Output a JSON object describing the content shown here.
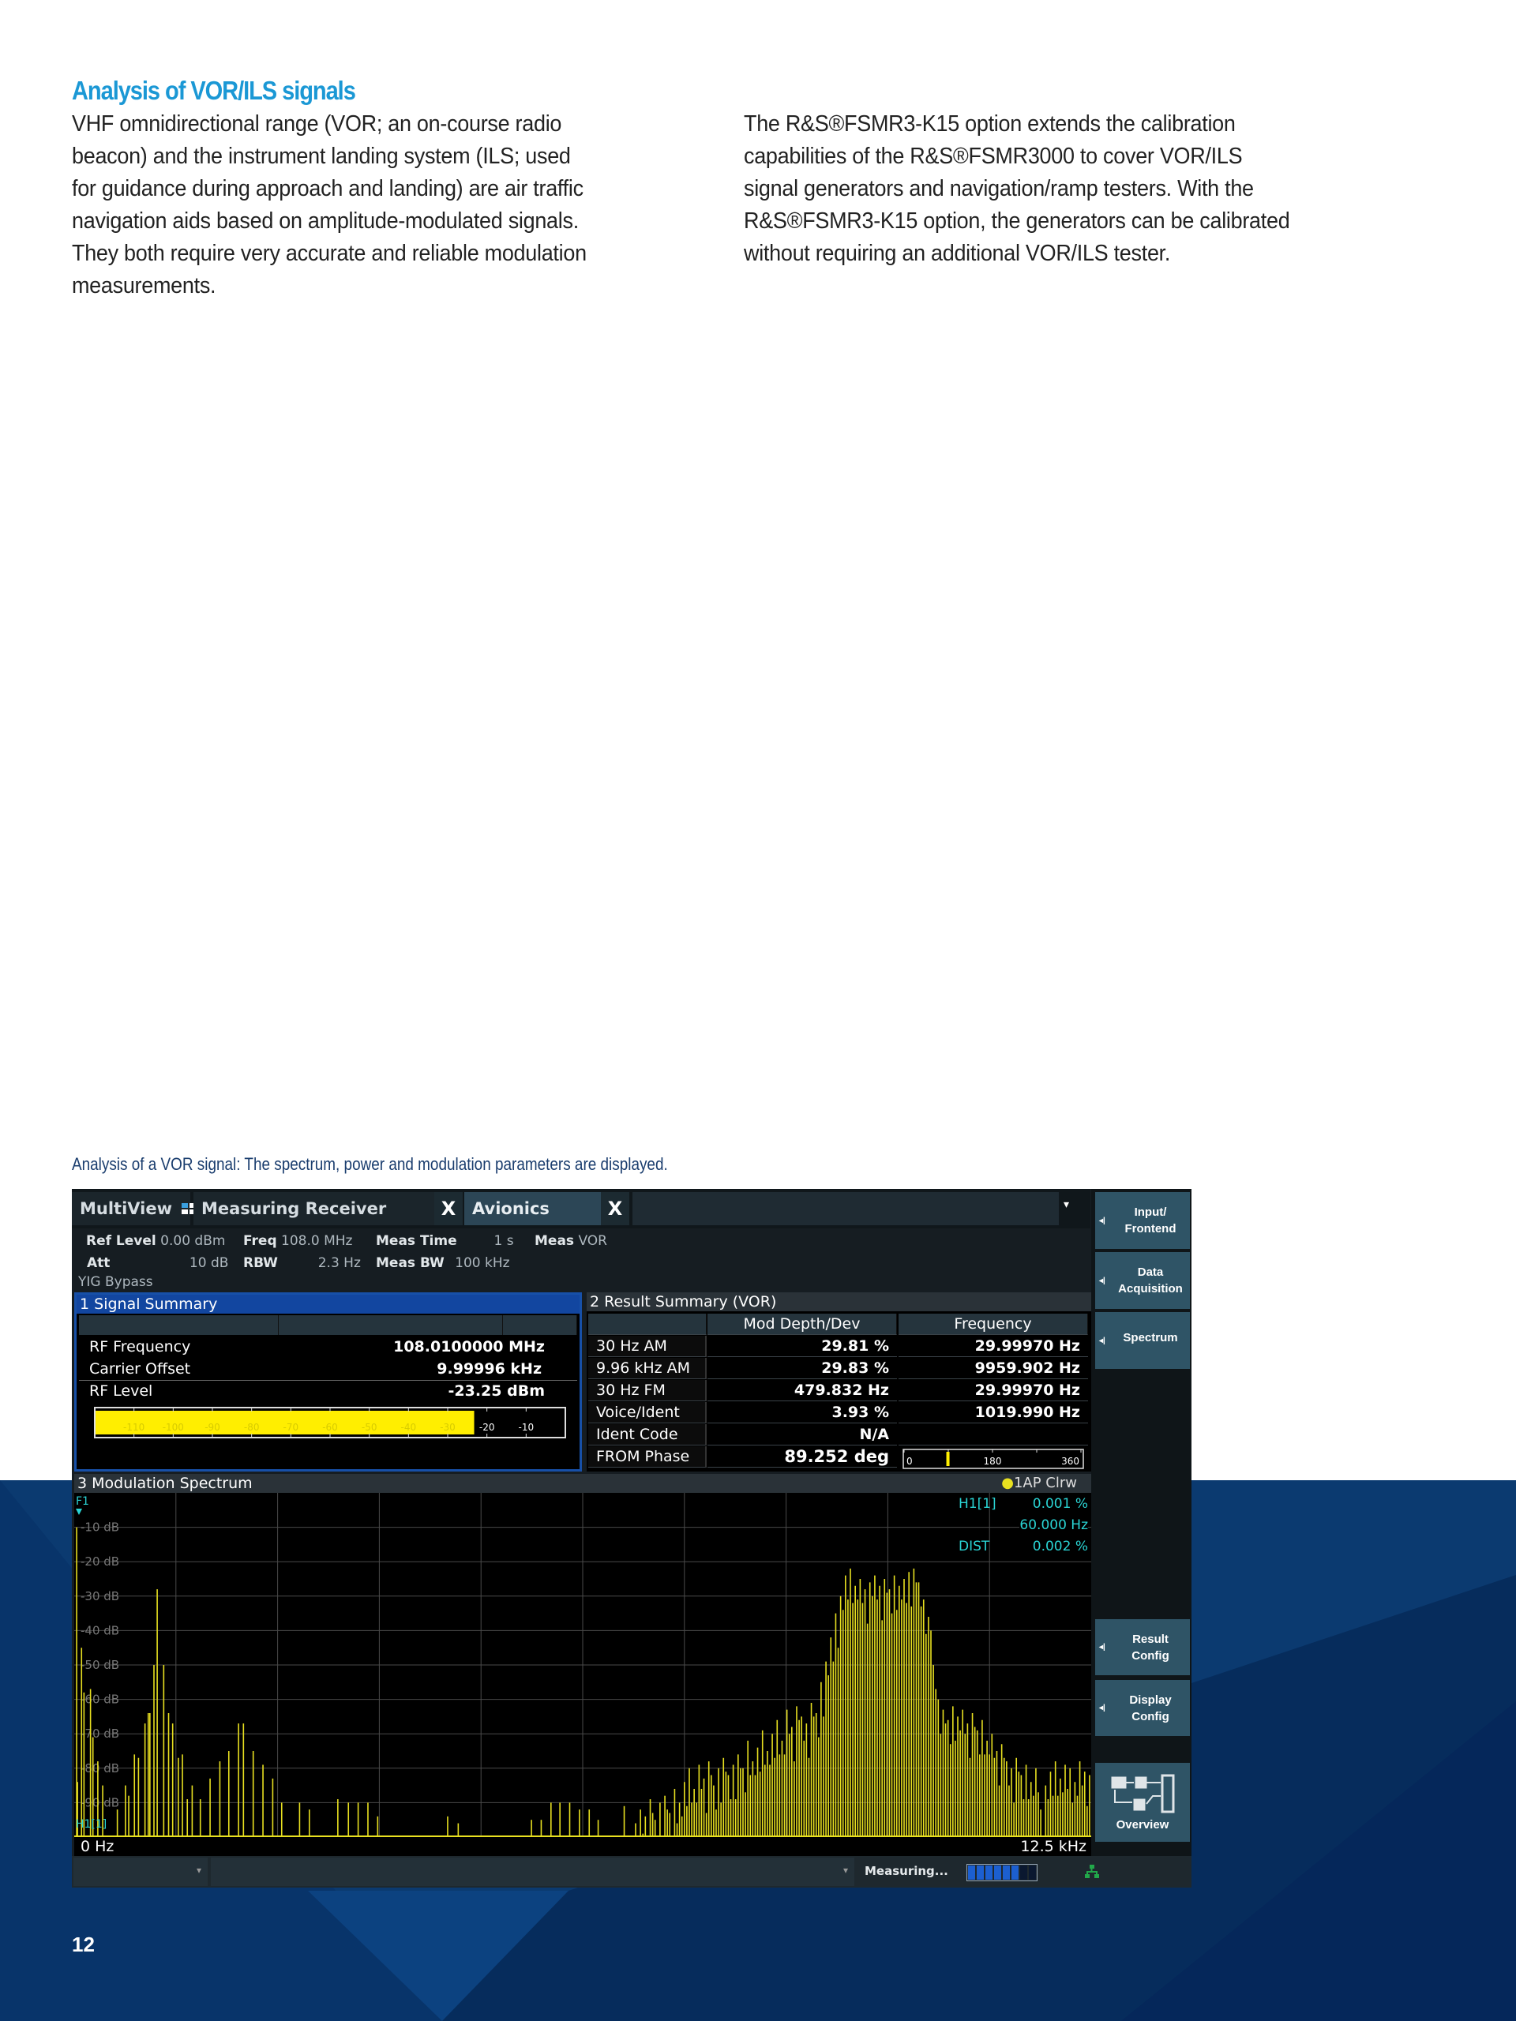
{
  "page": {
    "heading": "Analysis of VOR/ILS signals",
    "left_lines": [
      "VHF omnidirectional range (VOR; an on-course radio",
      "beacon) and the instrument landing system (ILS; used",
      "for guidance during approach and landing) are air traffic",
      "navigation aids based on amplitude-modulated signals.",
      "They both require very accurate and reliable modulation",
      "measurements."
    ],
    "right_lines": [
      "The R&S®FSMR3-K15 option extends the calibration",
      "capabilities of the R&S®FSMR3000 to cover VOR/ILS",
      "signal generators and navigation/ramp testers. With the",
      "R&S®FSMR3-K15 option, the generators can be calibrated",
      "without requiring an additional VOR/ILS tester."
    ],
    "caption": "Analysis of a VOR signal: The spectrum, power and modulation parameters are displayed.",
    "page_number": "12",
    "brand_blue": "#1b98d5",
    "background_blue": "#0b3a70"
  },
  "instrument": {
    "tabs": {
      "multiview": "MultiView",
      "measuring_receiver": "Measuring Receiver",
      "avionics": "Avionics",
      "close": "X",
      "dropdown": "▾"
    },
    "info": {
      "ref_level_label": "Ref Level",
      "ref_level": "0.00 dBm",
      "freq_label": "Freq",
      "freq": "108.0 MHz",
      "meas_time_label": "Meas Time",
      "meas_time": "1 s",
      "meas_label": "Meas",
      "meas": "VOR",
      "att_label": "Att",
      "att": "10 dB",
      "rbw_label": "RBW",
      "rbw": "2.3 Hz",
      "meas_bw_label": "Meas BW",
      "meas_bw": "100 kHz",
      "yig": "YIG Bypass"
    },
    "signal_summary": {
      "title": "1 Signal Summary",
      "rows": [
        {
          "label": "RF Frequency",
          "value": "108.0100000 MHz"
        },
        {
          "label": "Carrier Offset",
          "value": "9.99996 kHz"
        },
        {
          "label": "RF Level",
          "value": "-23.25 dBm"
        }
      ],
      "gauge": {
        "min": -120,
        "max": 0,
        "level_dbm": -23.25,
        "ticks": [
          "-110",
          "-100",
          "-90",
          "-80",
          "-70",
          "-60",
          "-50",
          "-40",
          "-30",
          "-20",
          "-10"
        ]
      }
    },
    "result_summary": {
      "title": "2 Result Summary (VOR)",
      "headers": [
        "",
        "Mod Depth/Dev",
        "Frequency"
      ],
      "rows": [
        [
          "30 Hz AM",
          "29.81 %",
          "29.99970 Hz"
        ],
        [
          "9.96 kHz AM",
          "29.83 %",
          "9959.902 Hz"
        ],
        [
          "30 Hz FM",
          "479.832 Hz",
          "29.99970 Hz"
        ],
        [
          "Voice/Ident",
          "3.93 %",
          "1019.990 Hz"
        ],
        [
          "Ident Code",
          "N/A",
          ""
        ],
        [
          "FROM Phase",
          "89.252 deg",
          ""
        ]
      ],
      "phase_gauge": {
        "value_deg": 89.252,
        "labels": [
          "0",
          "180",
          "360"
        ]
      }
    },
    "spectrum": {
      "title": "3 Modulation Spectrum",
      "trace": "1AP Clrw",
      "marker_label": "F1",
      "marker2": "H1[1]",
      "readout": {
        "h1_label": "H1[1]",
        "h1_value": "0.001 %",
        "h1_freq": "60.000 Hz",
        "dist_label": "DIST",
        "dist_value": "0.002 %"
      },
      "x_start": "0 Hz",
      "x_stop": "12.5 kHz",
      "x_range_khz": [
        0,
        12.5
      ],
      "y_range_db": [
        -100,
        0
      ],
      "y_ticks": [
        "-10 dB",
        "-20 dB",
        "-30 dB",
        "-40 dB",
        "-50 dB",
        "-60 dB",
        "-70 dB",
        "-80 dB",
        "-90 dB"
      ],
      "trace_color": "#e8e020",
      "marker_color": "#2ad4d4",
      "lines_khz_db": [
        [
          0.03,
          -10
        ],
        [
          0.04,
          -84
        ],
        [
          0.09,
          -45
        ],
        [
          0.12,
          -58
        ],
        [
          0.2,
          -57
        ],
        [
          0.23,
          -71
        ],
        [
          0.29,
          -78
        ],
        [
          0.35,
          -85
        ],
        [
          0.53,
          -92
        ],
        [
          0.63,
          -85
        ],
        [
          0.67,
          -88
        ],
        [
          0.74,
          -76
        ],
        [
          0.79,
          -77
        ],
        [
          0.87,
          -67
        ],
        [
          0.91,
          -64
        ],
        [
          0.93,
          -64
        ],
        [
          0.98,
          -50
        ],
        [
          1.02,
          -28
        ],
        [
          1.1,
          -50
        ],
        [
          1.16,
          -64
        ],
        [
          1.21,
          -67
        ],
        [
          1.28,
          -77
        ],
        [
          1.33,
          -76
        ],
        [
          1.39,
          -89
        ],
        [
          1.45,
          -85
        ],
        [
          1.55,
          -89
        ],
        [
          1.67,
          -83
        ],
        [
          1.79,
          -78
        ],
        [
          1.9,
          -75
        ],
        [
          2.02,
          -67
        ],
        [
          2.08,
          -67
        ],
        [
          2.2,
          -75
        ],
        [
          2.32,
          -79
        ],
        [
          2.44,
          -83
        ],
        [
          2.55,
          -90
        ],
        [
          2.77,
          -90
        ],
        [
          2.89,
          -92
        ],
        [
          3.24,
          -89
        ],
        [
          3.37,
          -90
        ],
        [
          3.49,
          -90
        ],
        [
          3.61,
          -90
        ],
        [
          3.73,
          -94
        ],
        [
          4.59,
          -94
        ],
        [
          4.72,
          -96
        ],
        [
          5.62,
          -95
        ],
        [
          5.74,
          -95
        ],
        [
          5.86,
          -90
        ],
        [
          5.97,
          -90
        ],
        [
          6.09,
          -90
        ],
        [
          6.21,
          -92
        ],
        [
          6.33,
          -92
        ],
        [
          6.44,
          -95
        ],
        [
          6.76,
          -91
        ]
      ],
      "cluster": {
        "start_khz": 6.9,
        "step_khz": 0.06,
        "db": [
          -96,
          -92,
          -94,
          -89,
          -95,
          -90,
          -88,
          -93,
          -86,
          -90,
          -84,
          -80,
          -86,
          -79,
          -83,
          -78,
          -85,
          -80,
          -77,
          -82,
          -79,
          -76,
          -80,
          -72,
          -78,
          -74,
          -69,
          -75,
          -70,
          -66,
          -72,
          -63,
          -68,
          -62,
          -65,
          -67,
          -61,
          -64,
          -55,
          -49,
          -42,
          -35,
          -30,
          -24,
          -22,
          -27,
          -25,
          -28,
          -26,
          -24,
          -27,
          -25,
          -28,
          -24,
          -27,
          -25,
          -23,
          -22,
          -26,
          -31,
          -36,
          -50,
          -60,
          -63,
          -66,
          -62,
          -65,
          -63,
          -67,
          -64,
          -69,
          -66,
          -72,
          -70,
          -75,
          -73,
          -78,
          -80,
          -77,
          -82,
          -79,
          -84,
          -80,
          -92,
          -85,
          -81,
          -78,
          -83,
          -79,
          -80,
          -84,
          -78,
          -81,
          -82
        ]
      }
    },
    "softkeys": [
      {
        "label": "Input/\nFrontend"
      },
      {
        "label": "Data\nAcquisition"
      },
      {
        "label": "Spectrum"
      },
      {
        "label": "Result\nConfig"
      },
      {
        "label": "Display\nConfig"
      },
      {
        "label": "Overview"
      }
    ],
    "status": {
      "measuring": "Measuring...",
      "progress_fraction": 0.8,
      "dropdown": "▾"
    }
  }
}
